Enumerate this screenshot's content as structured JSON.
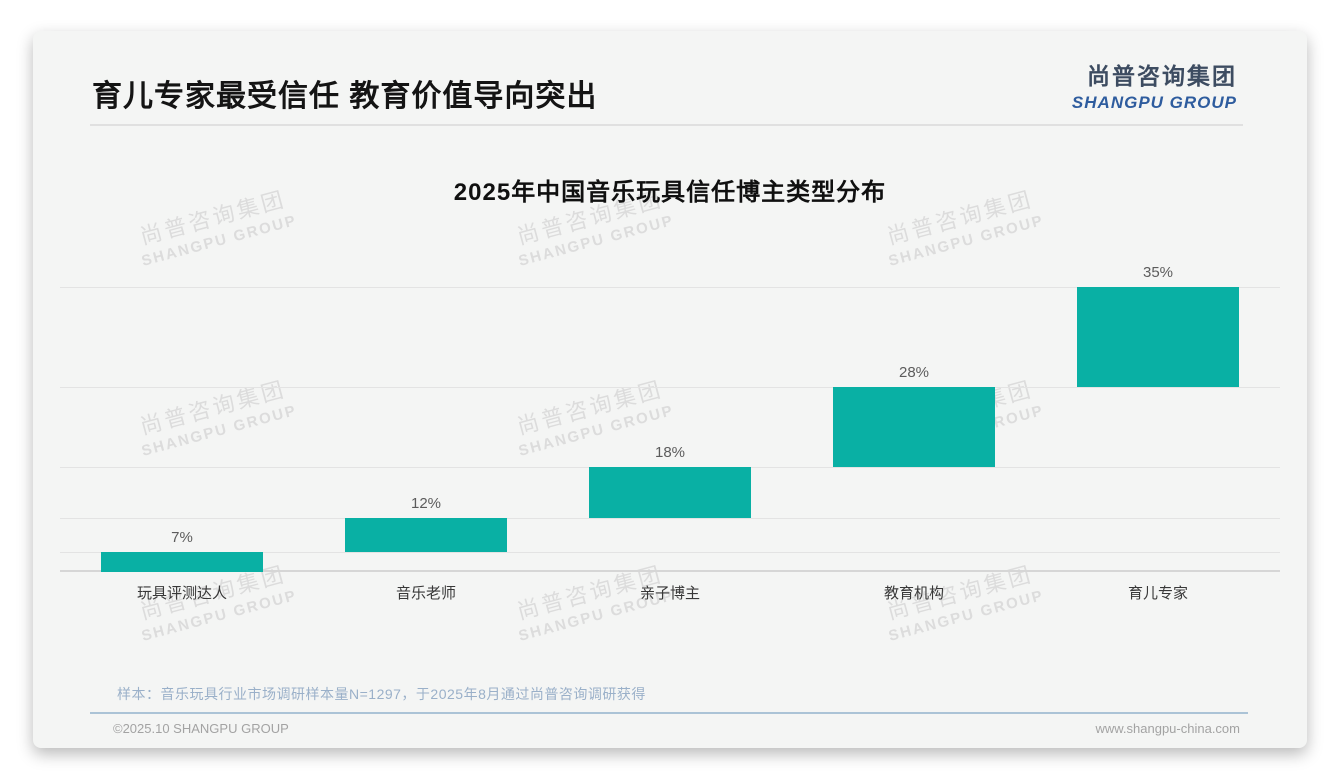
{
  "header": {
    "title": "育儿专家最受信任 教育价值导向突出",
    "logo_cn": "尚普咨询集团",
    "logo_en": "SHANGPU GROUP"
  },
  "chart_data": {
    "type": "bar",
    "variant": "waterfall-step",
    "title": "2025年中国音乐玩具信任博主类型分布",
    "categories": [
      "玩具评测达人",
      "音乐老师",
      "亲子博主",
      "教育机构",
      "育儿专家"
    ],
    "values": [
      7,
      12,
      18,
      28,
      35
    ],
    "value_labels": [
      "7%",
      "12%",
      "18%",
      "28%",
      "35%"
    ],
    "cumulative_start": [
      0,
      7,
      19,
      37,
      65
    ],
    "unit": "%",
    "ylim": [
      0,
      100
    ],
    "bar_color": "#09b0a4",
    "grid": "step-level-lines",
    "legend": "none"
  },
  "watermark": {
    "line1": "尚普咨询集团",
    "line2": "SHANGPU GROUP"
  },
  "footer": {
    "note": "样本：音乐玩具行业市场调研样本量N=1297，于2025年8月通过尚普咨询调研获得",
    "copyright": "©2025.10 SHANGPU GROUP",
    "website": "www.shangpu-china.com"
  },
  "colors": {
    "bar": "#09b0a4",
    "card_bg": "#f4f5f4",
    "logo_cn": "#3d4c61",
    "logo_en": "#2e5c9e",
    "note_text": "#9ab0c9"
  }
}
